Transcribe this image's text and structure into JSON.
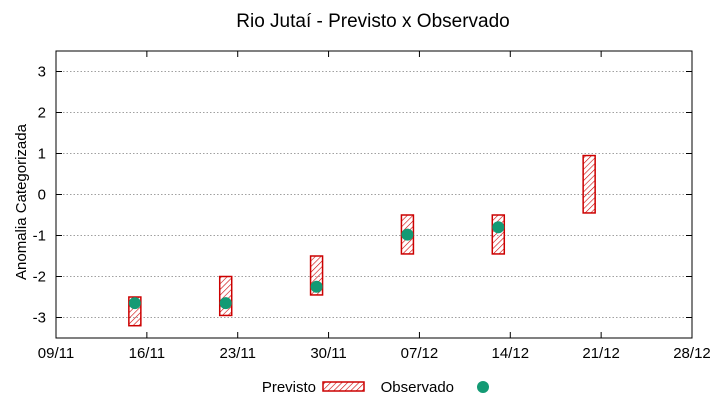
{
  "chart_data": {
    "type": "box",
    "title": "Rio Jutaí - Previsto x Observado",
    "xlabel": "",
    "ylabel": "Anomalia Categorizada",
    "x_ticks": [
      "09/11",
      "16/11",
      "23/11",
      "30/11",
      "07/12",
      "14/12",
      "21/12",
      "28/12"
    ],
    "ylim": [
      -3.5,
      3.5
    ],
    "y_ticks": [
      -3,
      -2,
      -1,
      0,
      1,
      2,
      3
    ],
    "grid": true,
    "legend_position": "bottom",
    "series": [
      {
        "name": "Previsto",
        "style": "hatched-box",
        "color": "#cc0000",
        "ranges": [
          {
            "x": 1,
            "low": -3.2,
            "high": -2.5
          },
          {
            "x": 2,
            "low": -2.95,
            "high": -2.0
          },
          {
            "x": 3,
            "low": -2.45,
            "high": -1.5
          },
          {
            "x": 4,
            "low": -1.45,
            "high": -0.5
          },
          {
            "x": 5,
            "low": -1.45,
            "high": -0.5
          },
          {
            "x": 6,
            "low": -0.45,
            "high": 0.95
          }
        ]
      },
      {
        "name": "Observado",
        "style": "point",
        "color": "#139a74",
        "points": [
          {
            "x": 1,
            "y": -2.65
          },
          {
            "x": 2,
            "y": -2.65
          },
          {
            "x": 3,
            "y": -2.25
          },
          {
            "x": 4,
            "y": -0.98
          },
          {
            "x": 5,
            "y": -0.8
          }
        ]
      }
    ]
  }
}
